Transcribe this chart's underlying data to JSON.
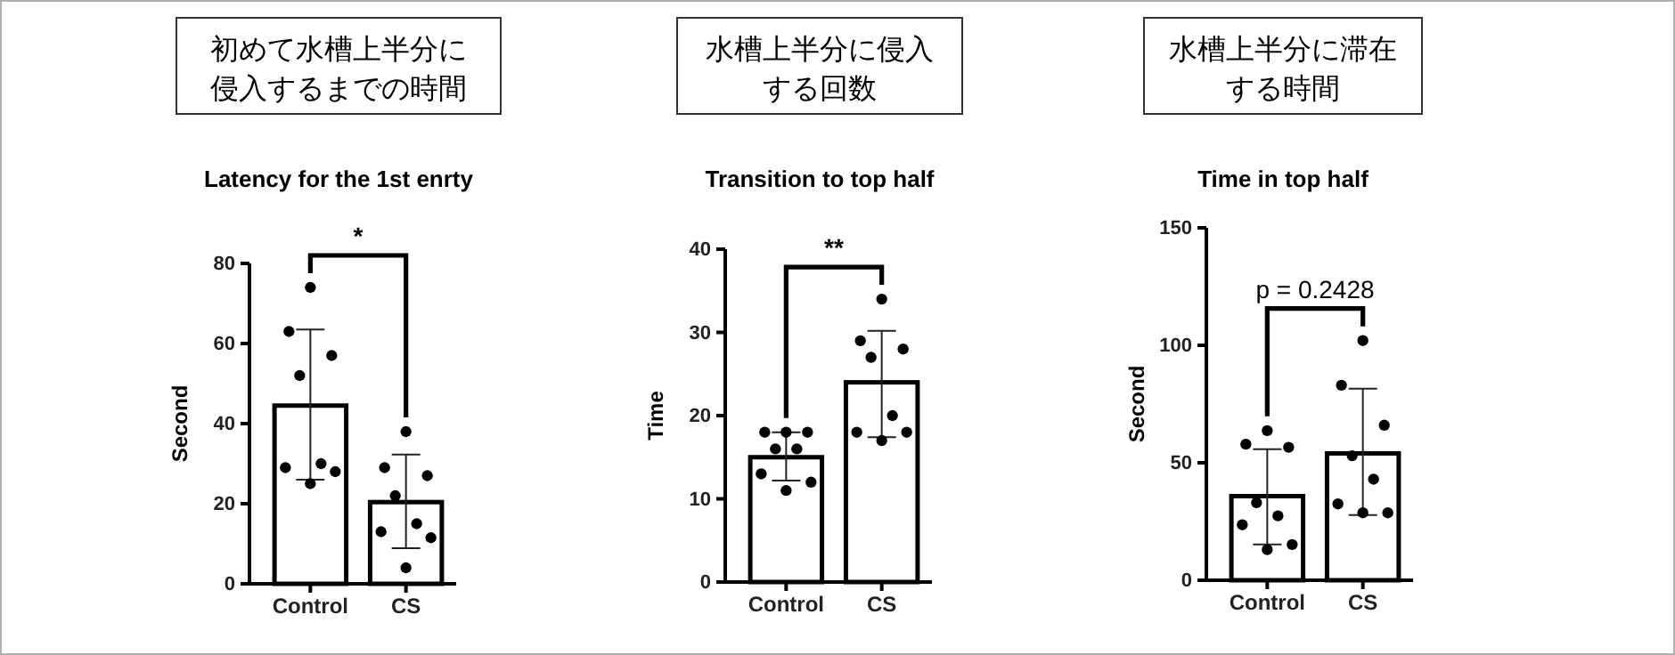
{
  "chart_data": [
    {
      "type": "bar",
      "title": "初めて水槽上半分に侵入するまでの時間",
      "subtitle": "Latency for the 1st enrty",
      "ylabel": "Second",
      "categories": [
        "Control",
        "CS"
      ],
      "ylim": [
        0,
        80
      ],
      "yticks": [
        0,
        20,
        40,
        60,
        80
      ],
      "grid": false,
      "annotations": [
        "*"
      ],
      "series": [
        {
          "color": "#ffffff",
          "values": [
            44.5,
            20.4
          ],
          "errors": [
            [
              26,
              63.5
            ],
            [
              8.9,
              32.3
            ]
          ]
        },
        {
          "type": "scatter",
          "color": "#000000",
          "marker": "circle",
          "x": [
            "Control",
            "Control",
            "Control",
            "Control",
            "Control",
            "Control",
            "Control",
            "Control",
            "CS",
            "CS",
            "CS",
            "CS",
            "CS",
            "CS",
            "CS",
            "CS"
          ],
          "values": [
            74,
            63,
            57,
            52,
            30,
            29,
            28,
            25,
            38,
            29,
            27,
            22,
            15,
            13,
            11.5,
            4
          ]
        }
      ]
    },
    {
      "type": "bar",
      "title": "水槽上半分に侵入する回数",
      "subtitle": "Transition to top half",
      "ylabel": "Time",
      "categories": [
        "Control",
        "CS"
      ],
      "ylim": [
        0,
        40
      ],
      "yticks": [
        0,
        10,
        20,
        30,
        40
      ],
      "grid": false,
      "annotations": [
        "**"
      ],
      "series": [
        {
          "color": "#ffffff",
          "values": [
            15,
            24
          ],
          "errors": [
            [
              12.2,
              18
            ],
            [
              17.4,
              30.2
            ]
          ]
        },
        {
          "type": "scatter",
          "color": "#000000",
          "marker": "circle",
          "x": [
            "Control",
            "Control",
            "Control",
            "Control",
            "Control",
            "Control",
            "Control",
            "Control",
            "CS",
            "CS",
            "CS",
            "CS",
            "CS",
            "CS",
            "CS",
            "CS"
          ],
          "values": [
            18,
            18,
            18,
            16,
            16,
            13,
            12,
            11,
            34,
            29,
            28,
            27,
            20,
            18,
            18,
            17
          ]
        }
      ]
    },
    {
      "type": "bar",
      "title": "水槽上半分に滞在する時間",
      "subtitle": "Time in top half",
      "ylabel": "Second",
      "categories": [
        "Control",
        "CS"
      ],
      "ylim": [
        0,
        150
      ],
      "yticks": [
        0,
        50,
        100,
        150
      ],
      "grid": false,
      "annotations": [
        "p = 0.2428"
      ],
      "series": [
        {
          "color": "#ffffff",
          "values": [
            35.8,
            54
          ],
          "errors": [
            [
              15.2,
              55.8
            ],
            [
              27.7,
              81.5
            ]
          ]
        },
        {
          "type": "scatter",
          "color": "#000000",
          "marker": "circle",
          "x": [
            "Control",
            "Control",
            "Control",
            "Control",
            "Control",
            "Control",
            "Control",
            "Control",
            "CS",
            "CS",
            "CS",
            "CS",
            "CS",
            "CS",
            "CS",
            "CS"
          ],
          "values": [
            63.7,
            57.9,
            56.6,
            33,
            27.4,
            23.6,
            15.2,
            13,
            102,
            83,
            66,
            53,
            43,
            32.5,
            28.7,
            28.7
          ]
        }
      ]
    }
  ]
}
